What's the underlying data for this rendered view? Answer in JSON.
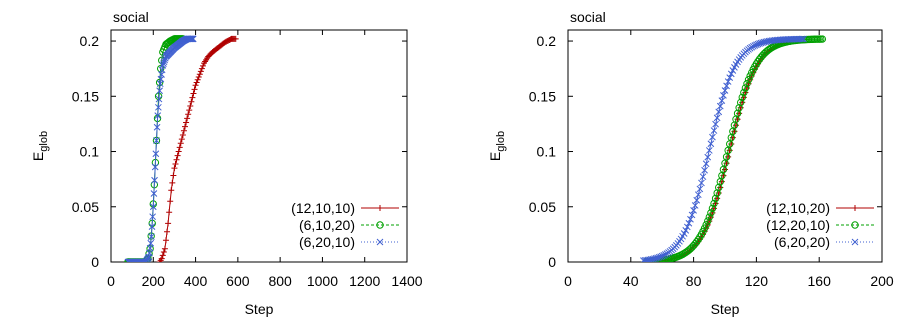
{
  "chart_data": [
    {
      "type": "line",
      "title": "social",
      "xlabel": "Step",
      "ylabel": "E",
      "ylabel_sub": "glob",
      "xlim": [
        0,
        1400
      ],
      "ylim": [
        0,
        0.21
      ],
      "xticks": [
        0,
        200,
        400,
        600,
        800,
        1000,
        1200,
        1400
      ],
      "yticks": [
        0,
        0.05,
        0.1,
        0.15,
        0.2
      ],
      "xtick_labels": [
        "0",
        "200",
        "400",
        "600",
        "800",
        "1000",
        "1200",
        "1400"
      ],
      "ytick_labels": [
        "0",
        "0.05",
        "0.1",
        "0.15",
        "0.2"
      ],
      "legend": "bottom-right",
      "grid": false,
      "series": [
        {
          "name": "(12,10,10)",
          "color": "#b00000",
          "marker": "plus",
          "x_start": 230,
          "x_end": 590,
          "x_step": 5,
          "plateau_start": 570,
          "points": [
            [
              230,
              0
            ],
            [
              240,
              0.003
            ],
            [
              255,
              0.012
            ],
            [
              270,
              0.035
            ],
            [
              285,
              0.065
            ],
            [
              300,
              0.085
            ],
            [
              320,
              0.1
            ],
            [
              340,
              0.115
            ],
            [
              360,
              0.13
            ],
            [
              380,
              0.145
            ],
            [
              400,
              0.16
            ],
            [
              420,
              0.17
            ],
            [
              440,
              0.18
            ],
            [
              460,
              0.186
            ],
            [
              480,
              0.19
            ],
            [
              500,
              0.193
            ],
            [
              520,
              0.196
            ],
            [
              540,
              0.199
            ],
            [
              560,
              0.201
            ],
            [
              570,
              0.202
            ],
            [
              590,
              0.202
            ]
          ]
        },
        {
          "name": "(6,10,20)",
          "color": "#00a000",
          "marker": "circle",
          "x_start": 80,
          "x_end": 340,
          "x_step": 5,
          "plateau_start": 300,
          "points": [
            [
              80,
              0
            ],
            [
              160,
              0
            ],
            [
              175,
              0.003
            ],
            [
              185,
              0.012
            ],
            [
              195,
              0.035
            ],
            [
              205,
              0.07
            ],
            [
              215,
              0.11
            ],
            [
              225,
              0.15
            ],
            [
              235,
              0.175
            ],
            [
              245,
              0.19
            ],
            [
              260,
              0.197
            ],
            [
              280,
              0.2
            ],
            [
              300,
              0.202
            ],
            [
              340,
              0.202
            ]
          ]
        },
        {
          "name": "(6,20,10)",
          "color": "#4060d0",
          "marker": "cross",
          "x_start": 80,
          "x_end": 390,
          "x_step": 3,
          "plateau_start": 360,
          "points": [
            [
              80,
              0
            ],
            [
              165,
              0
            ],
            [
              180,
              0.005
            ],
            [
              190,
              0.02
            ],
            [
              200,
              0.05
            ],
            [
              210,
              0.09
            ],
            [
              220,
              0.13
            ],
            [
              232,
              0.16
            ],
            [
              245,
              0.178
            ],
            [
              260,
              0.186
            ],
            [
              280,
              0.19
            ],
            [
              300,
              0.194
            ],
            [
              320,
              0.197
            ],
            [
              340,
              0.2
            ],
            [
              360,
              0.202
            ],
            [
              390,
              0.202
            ]
          ]
        }
      ]
    },
    {
      "type": "line",
      "title": "social",
      "xlabel": "Step",
      "ylabel": "E",
      "ylabel_sub": "glob",
      "xlim": [
        0,
        200
      ],
      "ylim": [
        0,
        0.21
      ],
      "xticks": [
        0,
        40,
        80,
        120,
        160,
        200
      ],
      "yticks": [
        0,
        0.05,
        0.1,
        0.15,
        0.2
      ],
      "xtick_labels": [
        "0",
        "40",
        "80",
        "120",
        "160",
        "200"
      ],
      "ytick_labels": [
        "0",
        "0.05",
        "0.1",
        "0.15",
        "0.2"
      ],
      "legend": "bottom-right",
      "grid": false,
      "series": [
        {
          "name": "(12,10,20)",
          "color": "#b00000",
          "marker": "plus",
          "logistic": {
            "mid": 103,
            "k": 0.115,
            "max": 0.202
          },
          "x_start": 50,
          "x_end": 140,
          "x_step": 1
        },
        {
          "name": "(12,20,10)",
          "color": "#00a000",
          "marker": "circle",
          "logistic": {
            "mid": 102,
            "k": 0.115,
            "max": 0.202
          },
          "x_start": 50,
          "x_end": 162,
          "x_step": 1
        },
        {
          "name": "(6,20,20)",
          "color": "#4060d0",
          "marker": "cross",
          "logistic": {
            "mid": 90,
            "k": 0.12,
            "max": 0.202
          },
          "x_start": 48,
          "x_end": 150,
          "x_step": 1
        }
      ]
    }
  ]
}
